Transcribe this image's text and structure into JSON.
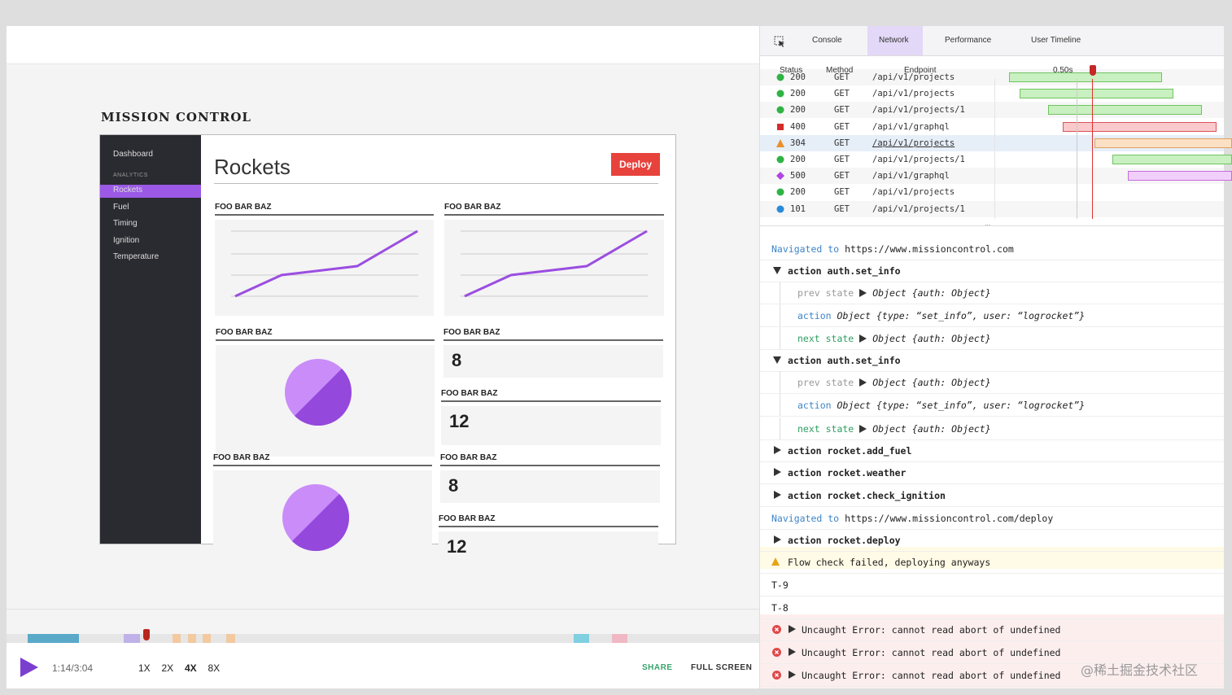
{
  "app": {
    "brand": "MISSION CONTROL",
    "sidebar": [
      "Dashboard",
      "ANALYTICS",
      "Rockets",
      "Fuel",
      "Timing",
      "Ignition",
      "Temperature"
    ],
    "page_title": "Rockets",
    "button": "Deploy",
    "widgets": [
      {
        "title": "FOO BAR BAZ"
      },
      {
        "title": "FOO BAR BAZ"
      },
      {
        "title": "FOO BAR BAZ"
      },
      {
        "title": "FOO BAR BAZ",
        "value": 8
      },
      {
        "title": "FOO BAR BAZ",
        "value": 12
      },
      {
        "title": "FOO BAR BAZ"
      },
      {
        "title": "FOO BAR BAZ",
        "value": 8
      },
      {
        "title": "FOO BAR BAZ",
        "value": 12
      }
    ]
  },
  "player": {
    "time": "1:14/3:04",
    "speeds": [
      "1X",
      "2X",
      "4X",
      "8X"
    ],
    "share": "SHARE",
    "fullscreen": "FULL SCREEN"
  },
  "devtools": {
    "tabs": [
      "Console",
      "Network",
      "Performance",
      "User Timeline"
    ],
    "network": {
      "headers": [
        "Status",
        "Method",
        "Endpoint",
        "0.50s"
      ],
      "rows": [
        [
          "200",
          "GET",
          "/api/v1/projects"
        ],
        [
          "200",
          "GET",
          "/api/v1/projects"
        ],
        [
          "200",
          "GET",
          "/api/v1/projects/1"
        ],
        [
          "400",
          "GET",
          "/api/v1/graphql"
        ],
        [
          "304",
          "GET",
          "/api/v1/projects"
        ],
        [
          "200",
          "GET",
          "/api/v1/projects/1"
        ],
        [
          "500",
          "GET",
          "/api/v1/graphql"
        ],
        [
          "200",
          "GET",
          "/api/v1/projects"
        ],
        [
          "101",
          "GET",
          "/api/v1/projects/1"
        ]
      ],
      "more": "..."
    },
    "console": [
      [
        "Navigated to",
        "https://www.missioncontrol.com"
      ],
      [
        "action",
        "auth.set_info"
      ],
      [
        "prev state",
        "Object {auth: Object}"
      ],
      [
        "action",
        "Object {type: “set_info”, user: “logrocket”}"
      ],
      [
        "next state",
        "Object {auth: Object}"
      ],
      [
        "action",
        "auth.set_info"
      ],
      [
        "prev state",
        "Object {auth: Object}"
      ],
      [
        "action",
        "Object {type: “set_info”, user: “logrocket”}"
      ],
      [
        "next state",
        "Object {auth: Object}"
      ],
      [
        "action",
        "rocket.add_fuel"
      ],
      [
        "action",
        "rocket.weather"
      ],
      [
        "action",
        "rocket.check_ignition"
      ],
      [
        "Navigated to",
        "https://www.missioncontrol.com/deploy"
      ],
      [
        "action",
        "rocket.deploy"
      ],
      [
        "Flow check failed, deploying anyways"
      ],
      [
        "T-9"
      ],
      [
        "T-8"
      ],
      [
        "Uncaught Error: cannot read abort of undefined"
      ],
      [
        "Uncaught Error: cannot read abort of undefined"
      ],
      [
        "Uncaught Error: cannot read abort of undefined"
      ]
    ]
  },
  "watermark": "@稀土掘金技术社区"
}
